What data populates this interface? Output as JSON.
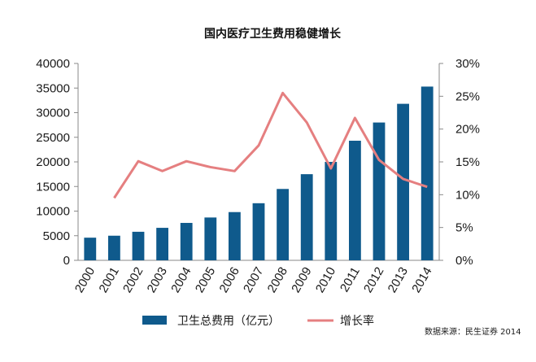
{
  "chart_data": {
    "type": "bar+line",
    "title": "国内医疗卫生费用稳健增长",
    "categories": [
      "2000",
      "2001",
      "2002",
      "2003",
      "2004",
      "2005",
      "2006",
      "2007",
      "2008",
      "2009",
      "2010",
      "2011",
      "2012",
      "2013",
      "2014"
    ],
    "series": [
      {
        "name": "卫生总费用（亿元）",
        "type": "bar",
        "axis": "left",
        "color": "#0f5a8c",
        "values": [
          4600,
          5000,
          5800,
          6600,
          7600,
          8700,
          9800,
          11600,
          14500,
          17500,
          20000,
          24300,
          28000,
          31800,
          35300
        ]
      },
      {
        "name": "增长率",
        "type": "line",
        "axis": "right",
        "color": "#e57f80",
        "values": [
          null,
          9.5,
          15.1,
          13.6,
          15.1,
          14.2,
          13.6,
          17.5,
          25.5,
          21.0,
          14.0,
          21.7,
          15.3,
          12.4,
          11.2
        ]
      }
    ],
    "y_left": {
      "min": 0,
      "max": 40000,
      "ticks": [
        0,
        5000,
        10000,
        15000,
        20000,
        25000,
        30000,
        35000,
        40000
      ]
    },
    "y_right": {
      "min": 0,
      "max": 30,
      "ticks": [
        "0%",
        "5%",
        "10%",
        "15%",
        "20%",
        "25%",
        "30%"
      ]
    },
    "legend": [
      {
        "label": "卫生总费用（亿元）",
        "kind": "bar",
        "color": "#0f5a8c"
      },
      {
        "label": "增长率",
        "kind": "line",
        "color": "#e57f80"
      }
    ],
    "source": "数据来源：民生证券 2014",
    "grid": false
  }
}
